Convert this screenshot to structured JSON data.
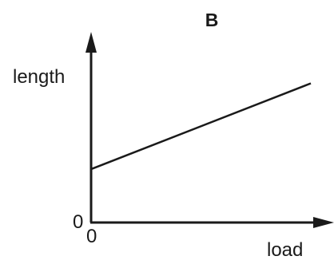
{
  "chart_data": {
    "type": "line",
    "title": "B",
    "xlabel": "load",
    "ylabel": "length",
    "x_tick_labels": [
      "0"
    ],
    "y_tick_labels": [
      "0"
    ],
    "xlim": [
      0,
      1
    ],
    "ylim": [
      0,
      1
    ],
    "grid": false,
    "legend": "none",
    "line_color": "#1a1a1a",
    "series": [
      {
        "x": [
          0,
          1
        ],
        "y": [
          0.28,
          0.73
        ]
      }
    ]
  }
}
